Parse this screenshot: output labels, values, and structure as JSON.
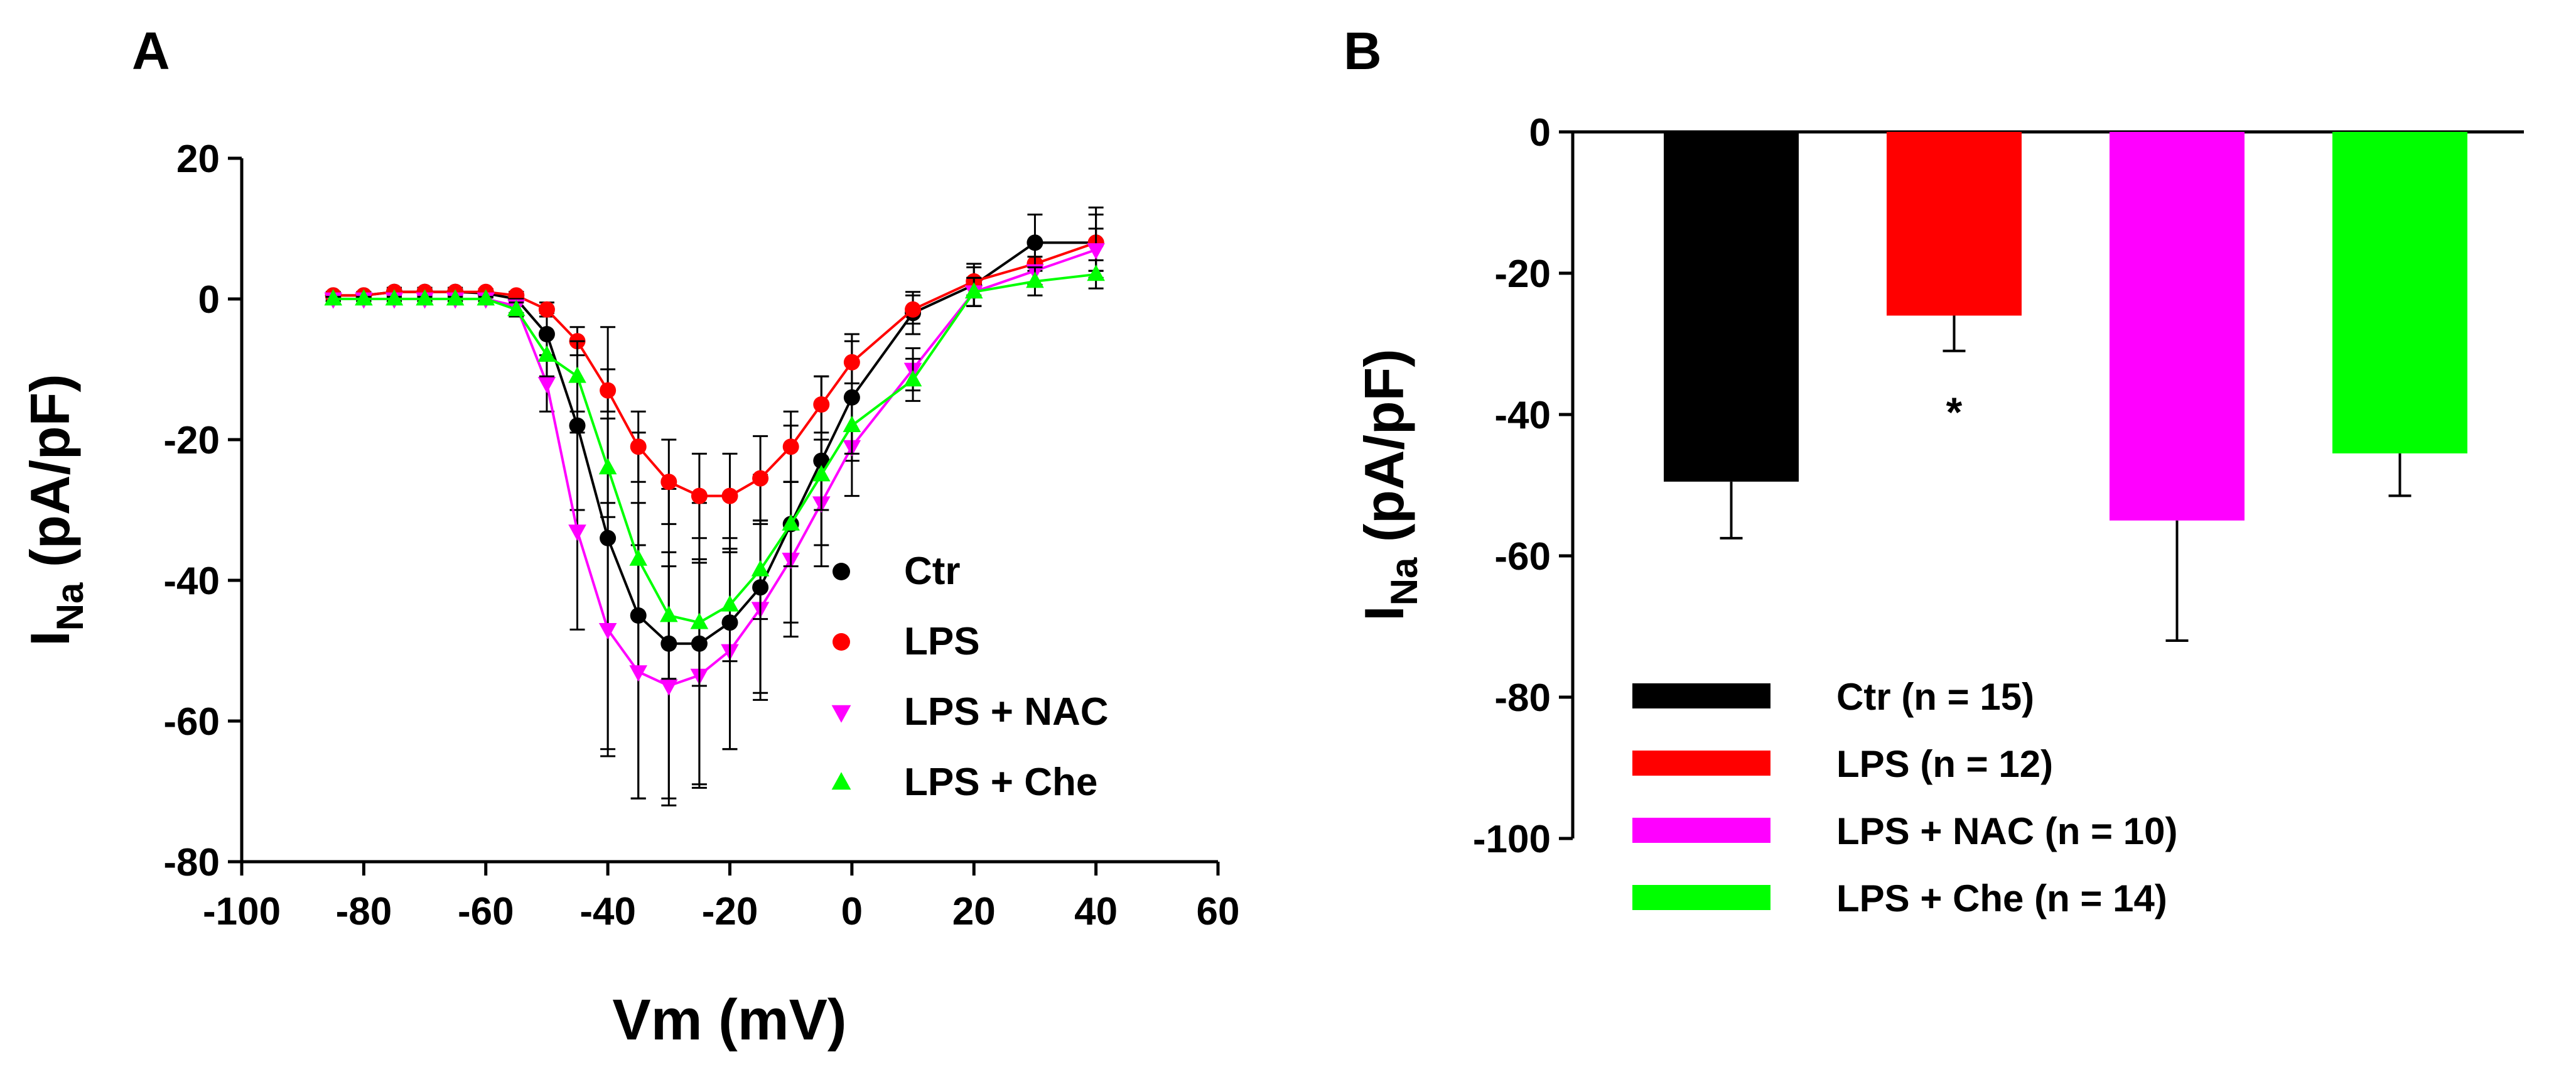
{
  "chart_data": [
    {
      "type": "line",
      "panel_label": "A",
      "title": "",
      "xlabel": "Vm (mV)",
      "ylabel_main": "I",
      "ylabel_sub": "Na",
      "ylabel_rest": " (pA/pF)",
      "xlim": [
        -100,
        60
      ],
      "ylim": [
        -80,
        20
      ],
      "xticks": [
        -100,
        -80,
        -60,
        -40,
        -20,
        0,
        20,
        40,
        60
      ],
      "yticks": [
        -80,
        -60,
        -40,
        -20,
        0,
        20
      ],
      "grid": false,
      "legend_position": "lower-right",
      "series": [
        {
          "name": "Ctr",
          "color": "#000000",
          "marker": "circle",
          "x": [
            -85,
            -80,
            -75,
            -70,
            -65,
            -60,
            -55,
            -50,
            -45,
            -40,
            -35,
            -30,
            -25,
            -20,
            -15,
            -10,
            -5,
            0,
            10,
            20,
            30,
            40
          ],
          "y": [
            0.5,
            0.5,
            1,
            1,
            1,
            0.8,
            0,
            -5,
            -18,
            -34,
            -45,
            -49,
            -49,
            -46,
            -41,
            -32,
            -23,
            -14,
            -2,
            2,
            8,
            8
          ],
          "err": [
            0.5,
            0.5,
            0.6,
            0.6,
            0.6,
            0.6,
            1,
            3,
            12,
            30,
            26,
            22,
            20,
            18,
            16,
            14,
            12,
            9,
            3,
            3,
            4,
            5
          ]
        },
        {
          "name": "LPS",
          "color": "#ff0000",
          "marker": "circle",
          "x": [
            -85,
            -80,
            -75,
            -70,
            -65,
            -60,
            -55,
            -50,
            -45,
            -40,
            -35,
            -30,
            -25,
            -20,
            -15,
            -10,
            -5,
            0,
            10,
            20,
            30,
            40
          ],
          "y": [
            0.5,
            0.5,
            1,
            1,
            1,
            1,
            0.5,
            -1.5,
            -6,
            -13,
            -21,
            -26,
            -28,
            -28,
            -25.5,
            -21,
            -15,
            -9,
            -1.5,
            2.5,
            5,
            8
          ],
          "err": [
            0.3,
            0.3,
            0.4,
            0.4,
            0.4,
            0.4,
            0.5,
            1,
            2,
            3,
            5,
            6,
            6,
            6,
            6,
            5,
            4,
            3,
            2,
            2,
            3,
            4
          ]
        },
        {
          "name": "LPS + NAC",
          "color": "#ff00ff",
          "marker": "triangle-down",
          "x": [
            -85,
            -80,
            -75,
            -70,
            -65,
            -60,
            -55,
            -50,
            -45,
            -40,
            -35,
            -30,
            -25,
            -20,
            -15,
            -10,
            -5,
            0,
            10,
            20,
            30,
            40
          ],
          "y": [
            0,
            0,
            0,
            0,
            0,
            0,
            -1,
            -12,
            -33,
            -47,
            -53,
            -55,
            -53.5,
            -50,
            -44,
            -37,
            -29,
            -21,
            -10,
            1,
            4,
            7
          ],
          "err": [
            0.3,
            0.3,
            0.3,
            0.3,
            0.3,
            0.3,
            1,
            4,
            14,
            18,
            18,
            17,
            16,
            14,
            12,
            11,
            9,
            7,
            3,
            2,
            2,
            3
          ]
        },
        {
          "name": "LPS + Che",
          "color": "#00ff00",
          "marker": "triangle-up",
          "x": [
            -85,
            -80,
            -75,
            -70,
            -65,
            -60,
            -55,
            -50,
            -45,
            -40,
            -35,
            -30,
            -25,
            -20,
            -15,
            -10,
            -5,
            0,
            10,
            20,
            30,
            40
          ],
          "y": [
            0,
            0,
            0,
            0,
            0,
            0,
            -1.5,
            -8,
            -11,
            -24,
            -37,
            -45,
            -46,
            -43.5,
            -38.5,
            -32,
            -25,
            -18,
            -11.5,
            1,
            2.5,
            3.5
          ],
          "err": [
            0.3,
            0.3,
            0.3,
            0.3,
            0.3,
            0.3,
            1,
            3,
            5,
            7,
            8,
            9,
            9,
            8,
            7,
            6,
            5,
            4,
            3,
            2,
            2,
            2
          ]
        }
      ]
    },
    {
      "type": "bar",
      "panel_label": "B",
      "title": "",
      "xlabel": "",
      "ylabel_main": "I",
      "ylabel_sub": "Na",
      "ylabel_rest": " (pA/pF)",
      "ylim": [
        -100,
        0
      ],
      "yticks": [
        -100,
        -80,
        -60,
        -40,
        -20,
        0
      ],
      "grid": false,
      "legend_position": "bottom-left",
      "categories": [
        "Ctr (n = 15)",
        "LPS (n = 12)",
        "LPS + NAC (n = 10)",
        "LPS + Che (n = 14)"
      ],
      "colors": [
        "#000000",
        "#ff0000",
        "#ff00ff",
        "#00ff00"
      ],
      "values": [
        -49.5,
        -26,
        -55,
        -45.5
      ],
      "errors": [
        8,
        5,
        17,
        6
      ],
      "annotations": [
        {
          "category": "LPS (n = 12)",
          "text": "*"
        }
      ]
    }
  ]
}
